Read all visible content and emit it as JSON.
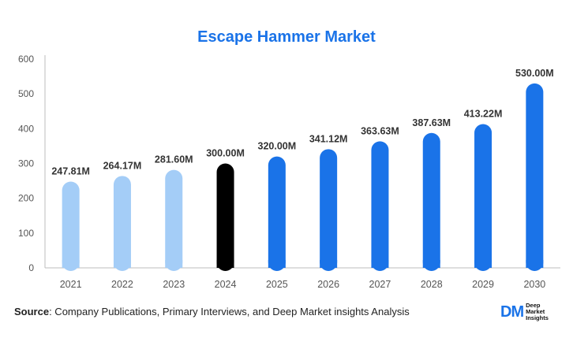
{
  "chart_data": {
    "type": "bar",
    "title": "Escape Hammer Market",
    "categories": [
      "2021",
      "2022",
      "2023",
      "2024",
      "2025",
      "2026",
      "2027",
      "2028",
      "2029",
      "2030"
    ],
    "values": [
      247.81,
      264.17,
      281.6,
      300.0,
      320.0,
      341.12,
      363.63,
      387.63,
      413.22,
      530.0
    ],
    "data_labels": [
      "247.81M",
      "264.17M",
      "281.60M",
      "300.00M",
      "320.00M",
      "341.12M",
      "363.63M",
      "387.63M",
      "413.22M",
      "530.00M"
    ],
    "bar_colors": [
      "#a4cdf7",
      "#a4cdf7",
      "#a4cdf7",
      "#000000",
      "#1a73e8",
      "#1a73e8",
      "#1a73e8",
      "#1a73e8",
      "#1a73e8",
      "#1a73e8"
    ],
    "ylim": [
      0,
      600
    ],
    "yticks": [
      "0",
      "100",
      "200",
      "300",
      "400",
      "500",
      "600"
    ],
    "xlabel": "",
    "ylabel": "",
    "grid": false,
    "legend": "none"
  },
  "footer": {
    "source_key": "Source",
    "source_text": ": Company Publications, Primary Interviews, and Deep Market insights Analysis"
  },
  "logo": {
    "mark": "DM",
    "line1": "Deep",
    "line2": "Market",
    "line3": "Insights"
  },
  "colors": {
    "title": "#1a73e8",
    "historic": "#a4cdf7",
    "base_year": "#000000",
    "forecast": "#1a73e8"
  }
}
